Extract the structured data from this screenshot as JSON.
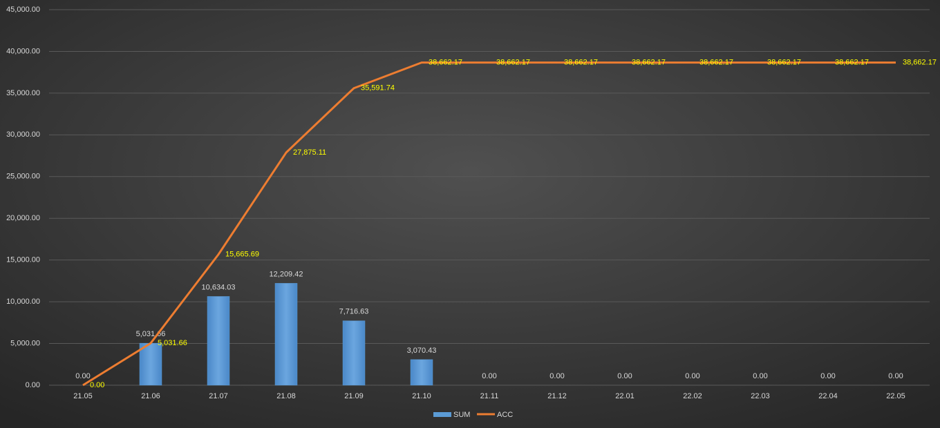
{
  "chart_data": {
    "type": "combo",
    "categories": [
      "21.05",
      "21.06",
      "21.07",
      "21.08",
      "21.09",
      "21.10",
      "21.11",
      "21.12",
      "22.01",
      "22.02",
      "22.03",
      "22.04",
      "22.05"
    ],
    "series": [
      {
        "name": "SUM",
        "type": "bar",
        "color": "#5b9bd5",
        "values": [
          0,
          5031.66,
          10634.03,
          12209.42,
          7716.63,
          3070.43,
          0,
          0,
          0,
          0,
          0,
          0,
          0
        ],
        "value_labels": [
          "0.00",
          "5,031.66",
          "10,634.03",
          "12,209.42",
          "7,716.63",
          "3,070.43",
          "0.00",
          "0.00",
          "0.00",
          "0.00",
          "0.00",
          "0.00",
          "0.00"
        ]
      },
      {
        "name": "ACC",
        "type": "line",
        "color": "#ed7d31",
        "values": [
          0,
          5031.66,
          15665.69,
          27875.11,
          35591.74,
          38662.17,
          38662.17,
          38662.17,
          38662.17,
          38662.17,
          38662.17,
          38662.17,
          38662.17
        ],
        "value_labels": [
          "0.00",
          "5,031.66",
          "15,665.69",
          "27,875.11",
          "35,591.74",
          "38,662.17",
          "38,662.17",
          "38,662.17",
          "38,662.17",
          "38,662.17",
          "38,662.17",
          "38,662.17",
          "38,662.17"
        ]
      }
    ],
    "ylim": [
      0,
      45000
    ],
    "yticks": [
      {
        "value": 0,
        "label": "0.00"
      },
      {
        "value": 5000,
        "label": "5,000.00"
      },
      {
        "value": 10000,
        "label": "10,000.00"
      },
      {
        "value": 15000,
        "label": "15,000.00"
      },
      {
        "value": 20000,
        "label": "20,000.00"
      },
      {
        "value": 25000,
        "label": "25,000.00"
      },
      {
        "value": 30000,
        "label": "30,000.00"
      },
      {
        "value": 35000,
        "label": "35,000.00"
      },
      {
        "value": 40000,
        "label": "40,000.00"
      },
      {
        "value": 45000,
        "label": "45,000.00"
      }
    ],
    "grid": true,
    "legend": "bottom"
  }
}
